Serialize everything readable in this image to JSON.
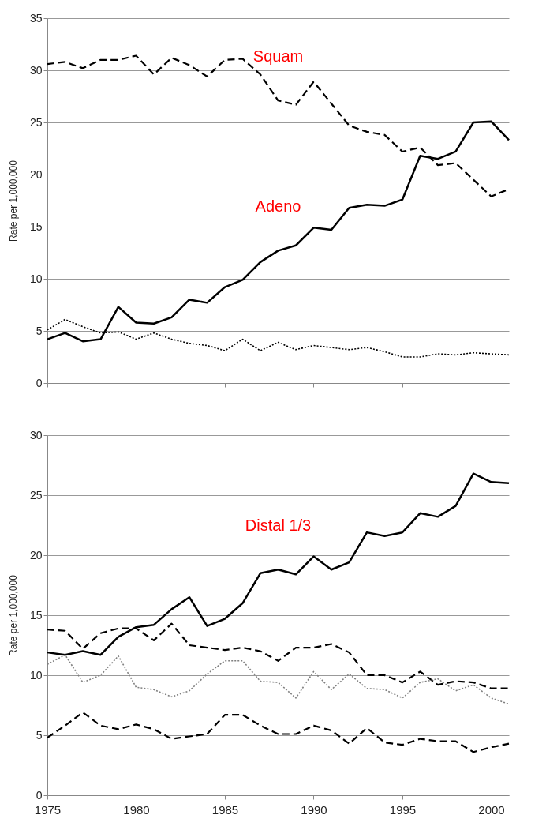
{
  "chart_data": [
    {
      "type": "line",
      "ylabel": "Rate per 1,000,000",
      "x": [
        1975,
        1976,
        1977,
        1978,
        1979,
        1980,
        1981,
        1982,
        1983,
        1984,
        1985,
        1986,
        1987,
        1988,
        1989,
        1990,
        1991,
        1992,
        1993,
        1994,
        1995,
        1996,
        1997,
        1998,
        1999,
        2000,
        2001
      ],
      "series": [
        {
          "name": "Adeno",
          "color": "#000000",
          "line_style": "solid",
          "values": [
            4.2,
            4.8,
            4.0,
            4.2,
            7.3,
            5.8,
            5.7,
            6.3,
            8.0,
            7.7,
            9.2,
            9.9,
            11.6,
            12.7,
            13.2,
            14.9,
            14.7,
            16.8,
            17.1,
            17.0,
            17.6,
            21.8,
            21.5,
            22.2,
            25.0,
            25.1,
            23.3
          ]
        },
        {
          "name": "Squam",
          "color": "#000000",
          "line_style": "dashed",
          "values": [
            30.6,
            30.8,
            30.2,
            31.0,
            31.0,
            31.4,
            29.6,
            31.2,
            30.5,
            29.4,
            31.0,
            31.1,
            29.6,
            27.1,
            26.7,
            28.9,
            26.8,
            24.7,
            24.1,
            23.8,
            22.2,
            22.6,
            20.9,
            21.1,
            19.5,
            17.9,
            18.6
          ]
        },
        {
          "color": "#000000",
          "line_style": "dotted",
          "values": [
            5.1,
            6.1,
            5.4,
            4.8,
            4.9,
            4.2,
            4.8,
            4.2,
            3.8,
            3.6,
            3.1,
            4.2,
            3.1,
            3.9,
            3.2,
            3.6,
            3.4,
            3.2,
            3.4,
            3.0,
            2.5,
            2.5,
            2.8,
            2.7,
            2.9,
            2.8,
            2.7
          ]
        }
      ],
      "xlim": [
        1975,
        2001
      ],
      "xticks": [
        1975,
        1980,
        1985,
        1990,
        1995,
        2000
      ],
      "ylim": [
        0,
        35
      ],
      "yticks": [
        0,
        5,
        10,
        15,
        20,
        25,
        30,
        35
      ],
      "grid": "y",
      "tick_labels": "y"
    },
    {
      "type": "line",
      "ylabel": "Rate per 1,000,000",
      "x": [
        1975,
        1976,
        1977,
        1978,
        1979,
        1980,
        1981,
        1982,
        1983,
        1984,
        1985,
        1986,
        1987,
        1988,
        1989,
        1990,
        1991,
        1992,
        1993,
        1994,
        1995,
        1996,
        1997,
        1998,
        1999,
        2000,
        2001
      ],
      "series": [
        {
          "name": "Distal 1/3",
          "color": "#000000",
          "line_style": "solid",
          "values": [
            11.9,
            11.7,
            12.0,
            11.7,
            13.2,
            14.0,
            14.2,
            15.5,
            16.5,
            14.1,
            14.7,
            16.0,
            18.5,
            18.8,
            18.4,
            19.9,
            18.8,
            19.4,
            21.9,
            21.6,
            21.9,
            23.5,
            23.2,
            24.1,
            26.8,
            26.1,
            26.0
          ]
        },
        {
          "color": "#000000",
          "line_style": "dashed",
          "values": [
            13.8,
            13.7,
            12.2,
            13.5,
            13.9,
            13.9,
            12.9,
            14.3,
            12.5,
            12.3,
            12.1,
            12.3,
            12.0,
            11.2,
            12.3,
            12.3,
            12.6,
            11.9,
            10.0,
            10.0,
            9.4,
            10.3,
            9.2,
            9.5,
            9.4,
            8.9,
            8.9
          ]
        },
        {
          "color": "#808080",
          "line_style": "dotted",
          "values": [
            10.9,
            11.7,
            9.4,
            10.0,
            11.6,
            9.0,
            8.8,
            8.2,
            8.7,
            10.1,
            11.2,
            11.2,
            9.5,
            9.4,
            8.1,
            10.3,
            8.8,
            10.1,
            8.9,
            8.8,
            8.1,
            9.4,
            9.7,
            8.7,
            9.2,
            8.1,
            7.6
          ]
        },
        {
          "color": "#000000",
          "line_style": "dashed",
          "values": [
            4.8,
            5.8,
            6.9,
            5.8,
            5.5,
            5.9,
            5.5,
            4.7,
            4.9,
            5.1,
            6.7,
            6.7,
            5.8,
            5.1,
            5.1,
            5.8,
            5.4,
            4.3,
            5.6,
            4.4,
            4.2,
            4.7,
            4.5,
            4.5,
            3.6,
            4.0,
            4.3
          ]
        }
      ],
      "xlim": [
        1975,
        2001
      ],
      "xticks": [
        1975,
        1980,
        1985,
        1990,
        1995,
        2000
      ],
      "ylim": [
        0,
        30
      ],
      "yticks": [
        0,
        5,
        10,
        15,
        20,
        25,
        30
      ],
      "grid": "y"
    }
  ]
}
